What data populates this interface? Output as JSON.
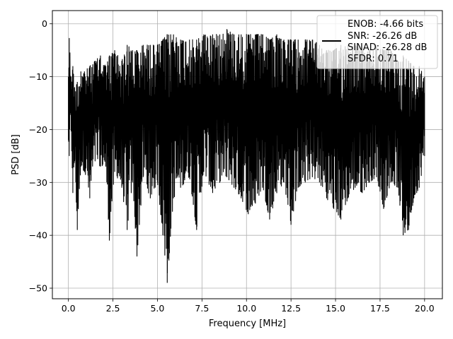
{
  "chart_data": {
    "type": "line",
    "title": "",
    "xlabel": "Frequency [MHz]",
    "ylabel": "PSD [dB]",
    "xlim": [
      -0.9,
      21.0
    ],
    "ylim": [
      -52,
      2.5
    ],
    "x_ticks": [
      0.0,
      2.5,
      5.0,
      7.5,
      10.0,
      12.5,
      15.0,
      17.5,
      20.0
    ],
    "x_tick_labels": [
      "0.0",
      "2.5",
      "5.0",
      "7.5",
      "10.0",
      "12.5",
      "15.0",
      "17.5",
      "20.0"
    ],
    "y_ticks": [
      0,
      -10,
      -20,
      -30,
      -40,
      -50
    ],
    "y_tick_labels": [
      "0",
      "−10",
      "−20",
      "−30",
      "−40",
      "−50"
    ],
    "grid": true,
    "legend_position": "top-right",
    "legend_lines": [
      "ENOB: -4.66 bits",
      "SNR: -26.26 dB",
      "SINAD: -26.28 dB",
      "SFDR: 0.71"
    ],
    "series": [
      {
        "color": "#000000",
        "x": [
          0.0,
          0.05,
          0.15,
          0.25,
          0.35,
          0.5,
          0.7,
          0.9,
          1.2,
          1.5,
          1.8,
          2.1,
          2.3,
          2.6,
          3.0,
          3.3,
          3.6,
          3.85,
          4.2,
          4.6,
          5.0,
          5.3,
          5.55,
          5.9,
          6.3,
          6.8,
          7.2,
          7.6,
          8.1,
          8.5,
          8.9,
          9.3,
          9.7,
          10.1,
          10.5,
          10.9,
          11.3,
          11.7,
          12.1,
          12.5,
          12.9,
          13.3,
          13.7,
          14.1,
          14.5,
          14.9,
          15.3,
          15.7,
          16.1,
          16.5,
          16.9,
          17.3,
          17.7,
          18.1,
          18.5,
          18.8,
          19.1,
          19.4,
          19.7,
          20.0
        ],
        "y_upper": [
          -10,
          -2.7,
          -10,
          -8,
          -12,
          -11,
          -9,
          -9,
          -8,
          -7,
          -6,
          -8,
          -6,
          -5,
          -7,
          -4,
          -5,
          -5,
          -4,
          -4,
          -4,
          -3,
          -2,
          -2,
          -3,
          -3,
          -3,
          -2,
          -2,
          -2,
          -1,
          -2,
          -2,
          -2,
          -2,
          -2,
          -3,
          -2,
          -3,
          -3,
          -3,
          -3,
          -3,
          -4,
          -5,
          -5,
          -4,
          -4,
          -4,
          -5,
          -5,
          -4,
          -5,
          -5,
          -7,
          -6,
          -7,
          -8,
          -8,
          -10
        ],
        "y_lower": [
          -22,
          -25,
          -20,
          -32,
          -26,
          -39,
          -27,
          -28,
          -33,
          -26,
          -27,
          -27,
          -41,
          -28,
          -31,
          -39,
          -30,
          -44,
          -29,
          -33,
          -30,
          -40,
          -49,
          -33,
          -31,
          -29,
          -39,
          -28,
          -32,
          -30,
          -29,
          -31,
          -33,
          -36,
          -34,
          -31,
          -37,
          -32,
          -30,
          -38,
          -31,
          -30,
          -29,
          -30,
          -33,
          -35,
          -37,
          -33,
          -31,
          -32,
          -30,
          -29,
          -35,
          -30,
          -31,
          -40,
          -39,
          -33,
          -31,
          -25
        ]
      }
    ]
  }
}
